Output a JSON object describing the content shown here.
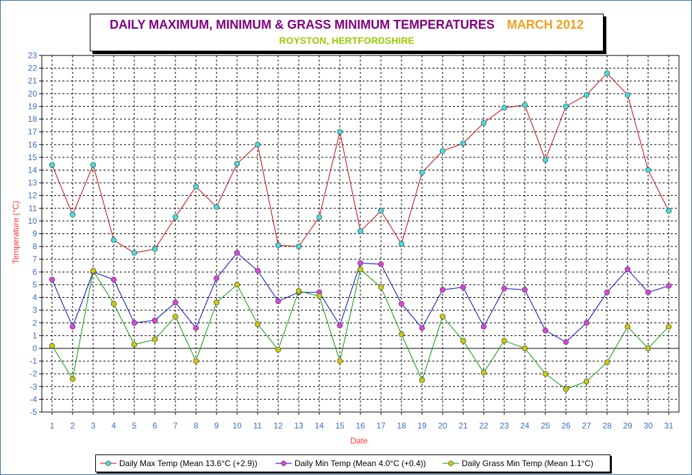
{
  "header": {
    "title": "DAILY MAXIMUM, MINIMUM & GRASS MINIMUM TEMPERATURES",
    "month": "MARCH 2012",
    "subtitle": "ROYSTON, HERTFORDSHIRE"
  },
  "colors": {
    "title": "#800080",
    "month": "#f0a020",
    "subtitle": "#99cc00",
    "ticks": "#3a6ec8",
    "axis_titles": "#ff3333"
  },
  "chart_data": {
    "type": "line",
    "xlabel": "Date",
    "ylabel": "Temperature (°C)",
    "ylim": [
      -5,
      23
    ],
    "grid": true,
    "legend_position": "bottom",
    "x": [
      1,
      2,
      3,
      4,
      5,
      6,
      7,
      8,
      9,
      10,
      11,
      12,
      13,
      14,
      15,
      16,
      17,
      18,
      19,
      20,
      21,
      22,
      23,
      24,
      25,
      26,
      27,
      28,
      29,
      30,
      31
    ],
    "series": [
      {
        "name": "Daily Max Temp (Mean 13.6°C (+2.9))",
        "line_color": "#cc0000",
        "marker_color": "#40e0e0",
        "values": [
          14.4,
          10.5,
          14.4,
          8.5,
          7.5,
          7.8,
          10.3,
          12.7,
          11.1,
          14.5,
          16.0,
          8.1,
          8.0,
          10.3,
          17.0,
          9.2,
          10.8,
          8.2,
          13.8,
          15.5,
          16.1,
          17.7,
          18.9,
          19.1,
          14.8,
          19.0,
          19.9,
          21.6,
          19.9,
          14.0,
          10.8
        ]
      },
      {
        "name": "Daily Min Temp (Mean 4.0°C (+0.4))",
        "line_color": "#0000cc",
        "marker_color": "#e040e0",
        "values": [
          5.4,
          1.7,
          6.0,
          5.4,
          2.0,
          2.2,
          3.6,
          1.6,
          5.5,
          7.5,
          6.1,
          3.7,
          4.4,
          4.4,
          1.8,
          6.7,
          6.6,
          3.5,
          1.6,
          4.6,
          4.8,
          1.7,
          4.7,
          4.6,
          1.4,
          0.5,
          2.0,
          4.4,
          6.2,
          4.4,
          4.9
        ]
      },
      {
        "name": "Daily Grass Min Temp (Mean 1.1°C)",
        "line_color": "#009900",
        "marker_color": "#cccc00",
        "values": [
          0.2,
          -2.4,
          6.1,
          3.5,
          0.3,
          0.7,
          2.5,
          -1.0,
          3.6,
          5.0,
          1.9,
          -0.1,
          4.5,
          4.1,
          -1.0,
          6.2,
          4.8,
          1.1,
          -2.5,
          2.5,
          0.6,
          -1.9,
          0.6,
          0.0,
          -2.0,
          -3.2,
          -2.6,
          -1.1,
          1.7,
          0.0,
          1.7
        ]
      }
    ]
  }
}
